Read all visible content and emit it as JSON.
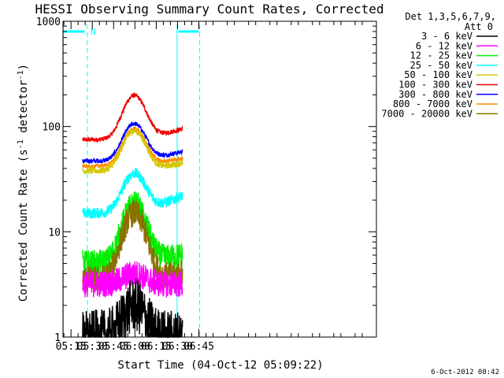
{
  "chart_data": {
    "type": "line",
    "title": "HESSI Observing Summary Count Rates, Corrected",
    "xlabel": "Start Time (04-Oct-12 05:09:22)",
    "ylabel_main": "Corrected Count Rate (s",
    "ylabel_sup1": "-1",
    "ylabel_mid": " detector",
    "ylabel_sup2": "-1",
    "ylabel_end": ")",
    "yscale": "log",
    "ylim": [
      1,
      1000
    ],
    "yticks": [
      {
        "value": 1,
        "label": "1"
      },
      {
        "value": 10,
        "label": "10"
      },
      {
        "value": 100,
        "label": "100"
      },
      {
        "value": 1000,
        "label": "1000"
      }
    ],
    "xlim_minutes": [
      309.37,
      530
    ],
    "xticks": [
      {
        "minutes": 315,
        "label": "05:15"
      },
      {
        "minutes": 330,
        "label": "05:30"
      },
      {
        "minutes": 345,
        "label": "05:45"
      },
      {
        "minutes": 360,
        "label": "06:00"
      },
      {
        "minutes": 375,
        "label": "06:15"
      },
      {
        "minutes": 390,
        "label": "06:30"
      },
      {
        "minutes": 405,
        "label": "06:45"
      }
    ],
    "data_window_minutes": [
      323.2,
      393.5
    ],
    "night_marker": {
      "label": "N",
      "segments": [
        [
          309.37,
          324.5
        ],
        [
          390.5,
          405
        ]
      ],
      "level": 800
    },
    "dashed_lines_minutes": [
      326.5,
      405.6
    ],
    "solid_lines_minutes": [
      309.6,
      389.7
    ],
    "legend": {
      "header": "Det 1,3,5,6,7,9,",
      "subheader": "Att 0",
      "entries": [
        {
          "label": "3 - 6 keV",
          "color": "#000000"
        },
        {
          "label": "6 - 12 keV",
          "color": "#ff00ff"
        },
        {
          "label": "12 - 25 keV",
          "color": "#00ee00"
        },
        {
          "label": "25 - 50 keV",
          "color": "#00ffff"
        },
        {
          "label": "50 - 100 keV",
          "color": "#d4c800"
        },
        {
          "label": "100 - 300 keV",
          "color": "#ee0000"
        },
        {
          "label": "300 - 800 keV",
          "color": "#0000ff"
        },
        {
          "label": "800 - 7000 keV",
          "color": "#ff8c00"
        },
        {
          "label": "7000 - 20000 keV",
          "color": "#8b7000"
        }
      ]
    },
    "series": [
      {
        "name": "100 - 300 keV",
        "color": "#ee0000",
        "base": 75,
        "peak": 195,
        "tail": 95,
        "noise": 0.05
      },
      {
        "name": "300 - 800 keV",
        "color": "#0000ff",
        "base": 47,
        "peak": 105,
        "tail": 58,
        "noise": 0.05
      },
      {
        "name": "800 - 7000 keV",
        "color": "#ff8c00",
        "base": 42,
        "peak": 95,
        "tail": 50,
        "noise": 0.04
      },
      {
        "name": "50 - 100 keV",
        "color": "#d4c800",
        "base": 38,
        "peak": 90,
        "tail": 45,
        "noise": 0.07
      },
      {
        "name": "25 - 50 keV",
        "color": "#00ffff",
        "base": 15,
        "peak": 35,
        "tail": 22,
        "noise": 0.12
      },
      {
        "name": "12 - 25 keV",
        "color": "#00ee00",
        "base": 5,
        "peak": 18,
        "tail": 6,
        "noise": 0.3
      },
      {
        "name": "7000 - 20000 keV",
        "color": "#8b7000",
        "base": 3.5,
        "peak": 15,
        "tail": 4,
        "noise": 0.3
      },
      {
        "name": "6 - 12 keV",
        "color": "#ff00ff",
        "base": 3.2,
        "peak": 4,
        "tail": 3.2,
        "noise": 0.3
      },
      {
        "name": "3 - 6 keV",
        "color": "#000000",
        "base": 1,
        "peak": 2,
        "tail": 1,
        "noise": 0.6
      }
    ],
    "peak_minutes": 359.5,
    "peak_width_minutes": 10
  },
  "footer": {
    "timestamp": "6-Oct-2012 08:42"
  }
}
